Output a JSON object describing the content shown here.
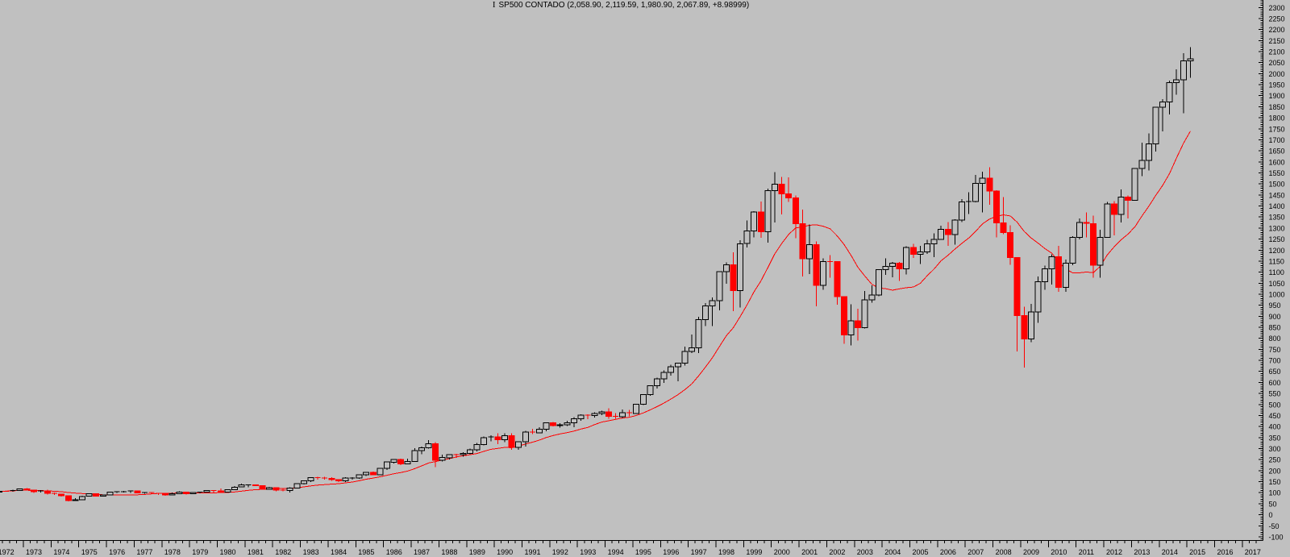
{
  "window": {
    "background": "#c0c0c0"
  },
  "header": {
    "icon_glyph": "I",
    "title": "SP500 CONTADO (2,058.90, 2,119.59, 1,980.90, 2,067.89, +8.98999)",
    "quote": {
      "name": "SP500 CONTADO",
      "open": "2,058.90",
      "high": "2,119.59",
      "low": "1,980.90",
      "last": "2,067.89",
      "change": "+8.98999"
    }
  },
  "chart_data": {
    "type": "candlestick",
    "title": "SP500 CONTADO (2,058.90, 2,119.59, 1,980.90, 2,067.89, +8.98999)",
    "period": "quarterly",
    "start_year": 1972,
    "start_quarter": 1,
    "grid": false,
    "legend_position": "top-center",
    "colors": {
      "background": "#c0c0c0",
      "up_stroke": "#000000",
      "up_fill": "#c0c0c0",
      "down": "#ff0000",
      "ma_line": "#ff0000",
      "axis": "#000000",
      "text": "#000000"
    },
    "overlays": [
      {
        "name": "moving-average",
        "type": "sma",
        "period": 12,
        "source": "close",
        "color": "#ff0000"
      }
    ],
    "x_axis": {
      "years": [
        1972,
        1973,
        1974,
        1975,
        1976,
        1977,
        1978,
        1979,
        1980,
        1981,
        1982,
        1983,
        1984,
        1985,
        1986,
        1987,
        1988,
        1989,
        1990,
        1991,
        1992,
        1993,
        1994,
        1995,
        1996,
        1997,
        1998,
        1999,
        2000,
        2001,
        2002,
        2003,
        2004,
        2005,
        2006,
        2007,
        2008,
        2009,
        2010,
        2011,
        2012,
        2013,
        2014,
        2015,
        2016,
        2017
      ],
      "minor_per_year": 4
    },
    "y_axis": {
      "side": "right",
      "min": -100,
      "max": 2300,
      "label_step": 50,
      "minor_step": 10,
      "labels": [
        2300,
        2250,
        2200,
        2150,
        2100,
        2050,
        2000,
        1950,
        1900,
        1850,
        1800,
        1750,
        1700,
        1650,
        1600,
        1550,
        1500,
        1450,
        1400,
        1350,
        1300,
        1250,
        1200,
        1150,
        1100,
        1050,
        1000,
        950,
        900,
        850,
        800,
        750,
        700,
        650,
        600,
        550,
        500,
        450,
        400,
        350,
        300,
        250,
        200,
        150,
        100,
        50,
        0,
        -50,
        -100
      ]
    },
    "ohlc": [
      [
        102.09,
        108.77,
        101.67,
        107.2
      ],
      [
        107.2,
        110.66,
        104.74,
        107.14
      ],
      [
        107.14,
        113.0,
        104.74,
        110.55
      ],
      [
        110.55,
        119.12,
        109.12,
        118.05
      ],
      [
        118.05,
        121.74,
        110.0,
        111.52
      ],
      [
        111.52,
        112.0,
        99.29,
        104.26
      ],
      [
        104.26,
        111.88,
        100.53,
        108.43
      ],
      [
        108.43,
        113.5,
        92.16,
        97.55
      ],
      [
        97.55,
        101.05,
        90.0,
        93.98
      ],
      [
        93.98,
        95.0,
        83.0,
        86.0
      ],
      [
        86.0,
        88.0,
        60.96,
        63.54
      ],
      [
        63.54,
        75.0,
        62.28,
        68.56
      ],
      [
        68.56,
        86.0,
        68.5,
        83.36
      ],
      [
        83.36,
        96.0,
        82.5,
        95.19
      ],
      [
        95.19,
        95.61,
        82.09,
        83.87
      ],
      [
        83.87,
        91.46,
        82.0,
        90.19
      ],
      [
        90.19,
        103.0,
        90.0,
        102.77
      ],
      [
        102.77,
        106.0,
        98.63,
        104.28
      ],
      [
        104.28,
        107.83,
        101.0,
        105.24
      ],
      [
        105.24,
        107.99,
        98.81,
        107.46
      ],
      [
        107.46,
        107.97,
        96.82,
        98.42
      ],
      [
        98.42,
        101.19,
        96.0,
        100.48
      ],
      [
        100.48,
        101.59,
        95.0,
        96.53
      ],
      [
        96.53,
        97.75,
        90.71,
        95.1
      ],
      [
        95.1,
        95.5,
        86.9,
        89.21
      ],
      [
        89.21,
        100.32,
        88.0,
        95.53
      ],
      [
        95.53,
        106.99,
        95.0,
        102.54
      ],
      [
        102.54,
        103.5,
        92.49,
        96.11
      ],
      [
        96.11,
        102.0,
        95.0,
        101.59
      ],
      [
        101.59,
        104.0,
        98.0,
        102.91
      ],
      [
        102.91,
        110.51,
        102.0,
        109.32
      ],
      [
        109.32,
        111.27,
        100.0,
        107.94
      ],
      [
        107.94,
        118.44,
        98.22,
        102.09
      ],
      [
        102.09,
        116.0,
        100.0,
        114.24
      ],
      [
        114.24,
        130.4,
        112.0,
        125.46
      ],
      [
        125.46,
        140.52,
        124.0,
        135.76
      ],
      [
        135.76,
        138.12,
        124.8,
        136.0
      ],
      [
        136.0,
        137.39,
        129.71,
        131.21
      ],
      [
        131.21,
        133.85,
        112.77,
        116.18
      ],
      [
        116.18,
        126.35,
        115.0,
        122.55
      ],
      [
        122.55,
        123.0,
        107.0,
        111.96
      ],
      [
        111.96,
        120.0,
        107.09,
        109.61
      ],
      [
        109.61,
        124.88,
        101.44,
        120.42
      ],
      [
        120.42,
        143.02,
        119.0,
        140.64
      ],
      [
        140.64,
        154.02,
        138.0,
        152.96
      ],
      [
        152.96,
        171.0,
        148.0,
        168.11
      ],
      [
        168.11,
        172.65,
        159.0,
        166.07
      ],
      [
        166.07,
        172.0,
        160.0,
        164.93
      ],
      [
        164.93,
        170.0,
        154.0,
        159.18
      ],
      [
        159.18,
        161.0,
        147.78,
        153.18
      ],
      [
        153.18,
        170.0,
        147.5,
        166.1
      ],
      [
        166.1,
        170.41,
        160.0,
        167.24
      ],
      [
        167.24,
        183.0,
        163.36,
        180.66
      ],
      [
        180.66,
        192.0,
        175.0,
        191.85
      ],
      [
        191.85,
        195.0,
        180.0,
        182.08
      ],
      [
        182.08,
        212.02,
        181.0,
        211.28
      ],
      [
        211.28,
        239.0,
        203.49,
        238.9
      ],
      [
        238.9,
        252.84,
        232.0,
        250.84
      ],
      [
        250.84,
        254.0,
        225.0,
        231.32
      ],
      [
        231.32,
        254.0,
        228.0,
        242.17
      ],
      [
        242.17,
        301.0,
        240.96,
        291.7
      ],
      [
        291.7,
        309.0,
        275.0,
        304.0
      ],
      [
        304.0,
        337.89,
        300.0,
        321.83
      ],
      [
        321.83,
        328.94,
        216.46,
        247.08
      ],
      [
        247.08,
        272.0,
        242.0,
        258.89
      ],
      [
        258.89,
        275.0,
        250.0,
        273.5
      ],
      [
        273.5,
        276.0,
        258.0,
        271.91
      ],
      [
        271.91,
        283.0,
        263.0,
        277.72
      ],
      [
        277.72,
        300.0,
        275.0,
        294.87
      ],
      [
        294.87,
        325.0,
        288.0,
        317.98
      ],
      [
        317.98,
        354.0,
        315.0,
        349.15
      ],
      [
        349.15,
        360.0,
        332.0,
        353.4
      ],
      [
        353.4,
        369.58,
        319.83,
        339.94
      ],
      [
        339.94,
        370.0,
        330.0,
        358.02
      ],
      [
        358.02,
        369.0,
        294.51,
        306.05
      ],
      [
        306.05,
        333.0,
        294.0,
        330.22
      ],
      [
        330.22,
        380.0,
        310.0,
        375.22
      ],
      [
        375.22,
        390.0,
        365.0,
        371.16
      ],
      [
        371.16,
        397.0,
        370.0,
        387.86
      ],
      [
        387.86,
        418.32,
        378.0,
        417.09
      ],
      [
        417.09,
        421.0,
        400.0,
        403.69
      ],
      [
        403.69,
        416.0,
        395.0,
        408.14
      ],
      [
        408.14,
        426.0,
        402.0,
        417.8
      ],
      [
        417.8,
        442.0,
        396.8,
        435.71
      ],
      [
        435.71,
        456.0,
        426.88,
        451.67
      ],
      [
        451.67,
        456.0,
        433.54,
        450.53
      ],
      [
        450.53,
        463.56,
        441.0,
        458.93
      ],
      [
        458.93,
        471.29,
        452.0,
        466.45
      ],
      [
        466.45,
        482.0,
        436.0,
        445.77
      ],
      [
        445.77,
        460.0,
        435.86,
        444.27
      ],
      [
        444.27,
        477.0,
        438.0,
        462.69
      ],
      [
        462.69,
        475.0,
        445.55,
        459.27
      ],
      [
        459.27,
        503.0,
        457.2,
        500.71
      ],
      [
        500.71,
        546.0,
        498.0,
        544.75
      ],
      [
        544.75,
        587.0,
        540.0,
        584.41
      ],
      [
        584.41,
        622.0,
        571.55,
        615.93
      ],
      [
        615.93,
        655.0,
        597.29,
        645.5
      ],
      [
        645.5,
        680.0,
        630.0,
        670.63
      ],
      [
        670.63,
        690.0,
        605.88,
        687.31
      ],
      [
        687.31,
        762.0,
        676.0,
        740.74
      ],
      [
        740.74,
        816.29,
        733.54,
        757.12
      ],
      [
        757.12,
        898.0,
        733.0,
        885.14
      ],
      [
        885.14,
        960.0,
        855.0,
        947.28
      ],
      [
        947.28,
        985.0,
        855.27,
        970.43
      ],
      [
        970.43,
        1105.0,
        927.69,
        1101.75
      ],
      [
        1101.75,
        1145.0,
        1048.0,
        1133.84
      ],
      [
        1133.84,
        1190.58,
        923.32,
        1017.01
      ],
      [
        1017.01,
        1244.0,
        939.0,
        1229.23
      ],
      [
        1229.23,
        1335.0,
        1212.19,
        1286.37
      ],
      [
        1286.37,
        1375.98,
        1258.0,
        1372.71
      ],
      [
        1372.71,
        1420.0,
        1256.0,
        1282.71
      ],
      [
        1282.71,
        1478.0,
        1233.7,
        1469.25
      ],
      [
        1469.25,
        1552.87,
        1325.0,
        1498.58
      ],
      [
        1498.58,
        1532.0,
        1361.0,
        1454.6
      ],
      [
        1454.6,
        1530.09,
        1419.0,
        1436.51
      ],
      [
        1436.51,
        1448.0,
        1254.07,
        1320.28
      ],
      [
        1320.28,
        1383.37,
        1081.19,
        1160.33
      ],
      [
        1160.33,
        1315.93,
        1091.99,
        1224.38
      ],
      [
        1224.38,
        1240.0,
        944.75,
        1040.94
      ],
      [
        1040.94,
        1163.0,
        1020.0,
        1148.08
      ],
      [
        1148.08,
        1176.97,
        1074.36,
        1147.39
      ],
      [
        1147.39,
        1148.0,
        952.92,
        989.82
      ],
      [
        989.82,
        990.0,
        775.68,
        815.28
      ],
      [
        815.28,
        954.28,
        768.63,
        879.82
      ],
      [
        879.82,
        935.05,
        788.9,
        848.18
      ],
      [
        848.18,
        1015.33,
        843.68,
        974.5
      ],
      [
        974.5,
        1040.0,
        960.84,
        995.97
      ],
      [
        995.97,
        1112.56,
        990.36,
        1111.92
      ],
      [
        1111.92,
        1163.23,
        1087.16,
        1126.21
      ],
      [
        1126.21,
        1146.34,
        1076.32,
        1140.84
      ],
      [
        1140.84,
        1146.0,
        1060.72,
        1114.58
      ],
      [
        1114.58,
        1217.33,
        1090.19,
        1211.92
      ],
      [
        1211.92,
        1229.11,
        1163.69,
        1180.59
      ],
      [
        1180.59,
        1219.59,
        1136.15,
        1191.33
      ],
      [
        1191.33,
        1245.86,
        1183.13,
        1228.81
      ],
      [
        1228.81,
        1275.8,
        1168.2,
        1248.29
      ],
      [
        1248.29,
        1310.88,
        1245.74,
        1294.83
      ],
      [
        1294.83,
        1326.7,
        1219.29,
        1270.2
      ],
      [
        1270.2,
        1340.28,
        1224.54,
        1335.85
      ],
      [
        1335.85,
        1431.81,
        1327.1,
        1418.3
      ],
      [
        1418.3,
        1461.57,
        1363.98,
        1420.86
      ],
      [
        1420.86,
        1540.56,
        1416.37,
        1503.35
      ],
      [
        1503.35,
        1555.9,
        1370.6,
        1526.75
      ],
      [
        1526.75,
        1576.09,
        1406.1,
        1468.36
      ],
      [
        1468.36,
        1471.77,
        1256.98,
        1322.7
      ],
      [
        1322.7,
        1440.24,
        1272.0,
        1280.0
      ],
      [
        1280.0,
        1313.15,
        1133.5,
        1166.36
      ],
      [
        1166.36,
        1167.03,
        741.02,
        903.25
      ],
      [
        903.25,
        943.85,
        666.79,
        797.87
      ],
      [
        797.87,
        956.23,
        783.32,
        919.32
      ],
      [
        919.32,
        1080.15,
        869.32,
        1057.08
      ],
      [
        1057.08,
        1130.38,
        1019.95,
        1115.1
      ],
      [
        1115.1,
        1180.69,
        1044.5,
        1169.43
      ],
      [
        1169.43,
        1219.8,
        1010.91,
        1030.71
      ],
      [
        1030.71,
        1157.16,
        1010.91,
        1141.2
      ],
      [
        1141.2,
        1262.6,
        1131.87,
        1257.64
      ],
      [
        1257.64,
        1344.07,
        1249.05,
        1325.83
      ],
      [
        1325.83,
        1370.58,
        1258.07,
        1320.64
      ],
      [
        1320.64,
        1356.48,
        1074.77,
        1131.42
      ],
      [
        1131.42,
        1292.66,
        1074.77,
        1257.6
      ],
      [
        1257.6,
        1419.15,
        1256.0,
        1408.47
      ],
      [
        1408.47,
        1422.38,
        1266.74,
        1362.16
      ],
      [
        1362.16,
        1474.51,
        1325.41,
        1440.67
      ],
      [
        1440.67,
        1448.0,
        1343.35,
        1426.19
      ],
      [
        1426.19,
        1570.28,
        1426.19,
        1569.19
      ],
      [
        1569.19,
        1687.18,
        1536.03,
        1606.28
      ],
      [
        1606.28,
        1729.86,
        1560.33,
        1681.55
      ],
      [
        1681.55,
        1849.44,
        1646.47,
        1848.36
      ],
      [
        1848.36,
        1883.97,
        1737.92,
        1872.34
      ],
      [
        1872.34,
        1968.17,
        1814.36,
        1960.23
      ],
      [
        1960.23,
        2019.26,
        1904.78,
        1972.29
      ],
      [
        1972.29,
        2093.55,
        1820.66,
        2058.9
      ],
      [
        2058.9,
        2119.59,
        1980.9,
        2067.89
      ]
    ]
  }
}
